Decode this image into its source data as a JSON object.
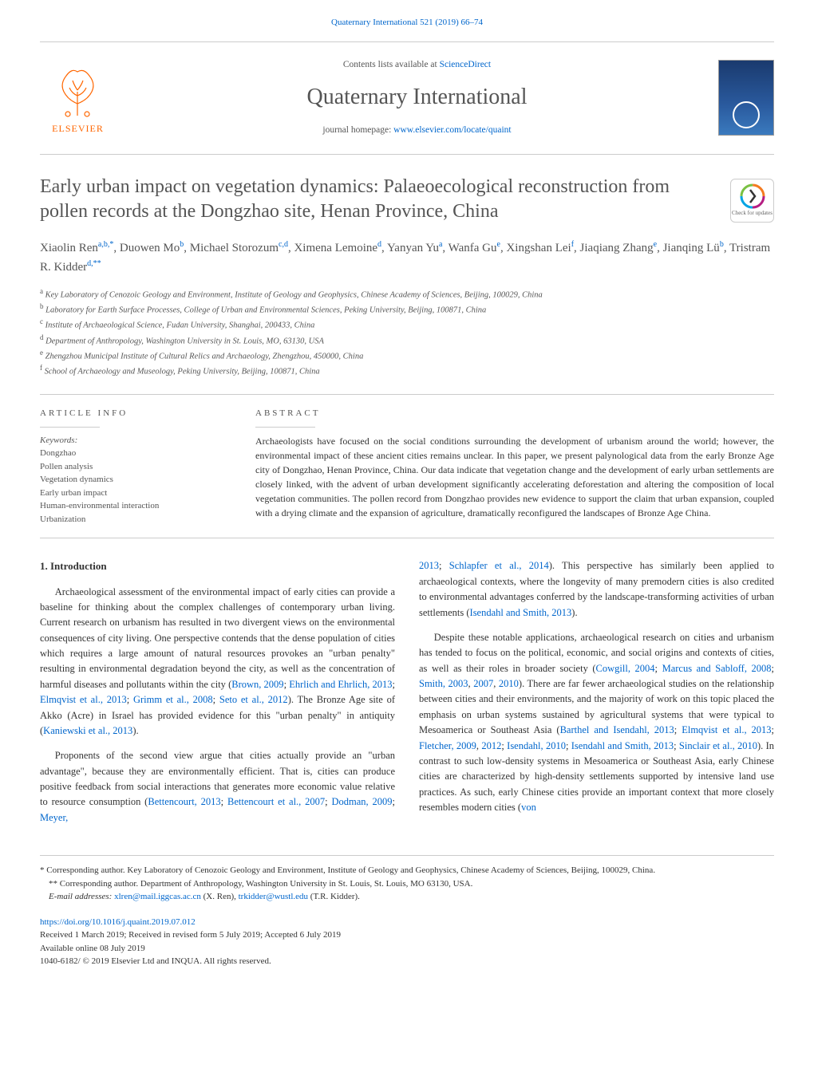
{
  "top_citation": "Quaternary International 521 (2019) 66–74",
  "header": {
    "publisher": "ELSEVIER",
    "contents_prefix": "Contents lists available at ",
    "contents_link": "ScienceDirect",
    "journal_title": "Quaternary International",
    "homepage_prefix": "journal homepage: ",
    "homepage_link": "www.elsevier.com/locate/quaint",
    "logo_color": "#ff6600",
    "cover_gradient_top": "#1a3a6e",
    "cover_gradient_bottom": "#3a7abe"
  },
  "check_updates": {
    "label": "Check for updates",
    "colors": {
      "ring1": "#b51e83",
      "ring2": "#00a4e4",
      "ring3": "#7ac143",
      "ring4": "#f47b20"
    }
  },
  "article": {
    "title": "Early urban impact on vegetation dynamics: Palaeoecological reconstruction from pollen records at the Dongzhao site, Henan Province, China",
    "authors_html": "Xiaolin Ren<sup>a,b,*</sup>, Duowen Mo<sup>b</sup>, Michael Storozum<sup>c,d</sup>, Ximena Lemoine<sup>d</sup>, Yanyan Yu<sup>a</sup>, Wanfa Gu<sup>e</sup>, Xingshan Lei<sup>f</sup>, Jiaqiang Zhang<sup>e</sup>, Jianqing Lü<sup>b</sup>, Tristram R. Kidder<sup>d,**</sup>",
    "affiliations": [
      {
        "key": "a",
        "text": "Key Laboratory of Cenozoic Geology and Environment, Institute of Geology and Geophysics, Chinese Academy of Sciences, Beijing, 100029, China"
      },
      {
        "key": "b",
        "text": "Laboratory for Earth Surface Processes, College of Urban and Environmental Sciences, Peking University, Beijing, 100871, China"
      },
      {
        "key": "c",
        "text": "Institute of Archaeological Science, Fudan University, Shanghai, 200433, China"
      },
      {
        "key": "d",
        "text": "Department of Anthropology, Washington University in St. Louis, MO, 63130, USA"
      },
      {
        "key": "e",
        "text": "Zhengzhou Municipal Institute of Cultural Relics and Archaeology, Zhengzhou, 450000, China"
      },
      {
        "key": "f",
        "text": "School of Archaeology and Museology, Peking University, Beijing, 100871, China"
      }
    ]
  },
  "info": {
    "article_info_label": "ARTICLE INFO",
    "abstract_label": "ABSTRACT",
    "keywords_label": "Keywords:",
    "keywords": "Dongzhao\nPollen analysis\nVegetation dynamics\nEarly urban impact\nHuman-environmental interaction\nUrbanization",
    "abstract_text": "Archaeologists have focused on the social conditions surrounding the development of urbanism around the world; however, the environmental impact of these ancient cities remains unclear. In this paper, we present palynological data from the early Bronze Age city of Dongzhao, Henan Province, China. Our data indicate that vegetation change and the development of early urban settlements are closely linked, with the advent of urban development significantly accelerating deforestation and altering the composition of local vegetation communities. The pollen record from Dongzhao provides new evidence to support the claim that urban expansion, coupled with a drying climate and the expansion of agriculture, dramatically reconfigured the landscapes of Bronze Age China."
  },
  "body": {
    "section_heading": "1. Introduction",
    "left_paragraphs": [
      "Archaeological assessment of the environmental impact of early cities can provide a baseline for thinking about the complex challenges of contemporary urban living. Current research on urbanism has resulted in two divergent views on the environmental consequences of city living. One perspective contends that the dense population of cities which requires a large amount of natural resources provokes an \"urban penalty\" resulting in environmental degradation beyond the city, as well as the concentration of harmful diseases and pollutants within the city (<span class=\"link\">Brown, 2009</span>; <span class=\"link\">Ehrlich and Ehrlich, 2013</span>; <span class=\"link\">Elmqvist et al., 2013</span>; <span class=\"link\">Grimm et al., 2008</span>; <span class=\"link\">Seto et al., 2012</span>). The Bronze Age site of Akko (Acre) in Israel has provided evidence for this \"urban penalty\" in antiquity (<span class=\"link\">Kaniewski et al., 2013</span>).",
      "Proponents of the second view argue that cities actually provide an \"urban advantage\", because they are environmentally efficient. That is, cities can produce positive feedback from social interactions that generates more economic value relative to resource consumption (<span class=\"link\">Bettencourt, 2013</span>; <span class=\"link\">Bettencourt et al., 2007</span>; <span class=\"link\">Dodman, 2009</span>; <span class=\"link\">Meyer,</span>"
    ],
    "right_paragraphs": [
      "<span class=\"link\">2013</span>; <span class=\"link\">Schlapfer et al., 2014</span>). This perspective has similarly been applied to archaeological contexts, where the longevity of many premodern cities is also credited to environmental advantages conferred by the landscape-transforming activities of urban settlements (<span class=\"link\">Isendahl and Smith, 2013</span>).",
      "Despite these notable applications, archaeological research on cities and urbanism has tended to focus on the political, economic, and social origins and contexts of cities, as well as their roles in broader society (<span class=\"link\">Cowgill, 2004</span>; <span class=\"link\">Marcus and Sabloff, 2008</span>; <span class=\"link\">Smith, 2003</span>, <span class=\"link\">2007</span>, <span class=\"link\">2010</span>). There are far fewer archaeological studies on the relationship between cities and their environments, and the majority of work on this topic placed the emphasis on urban systems sustained by agricultural systems that were typical to Mesoamerica or Southeast Asia (<span class=\"link\">Barthel and Isendahl, 2013</span>; <span class=\"link\">Elmqvist et al., 2013</span>; <span class=\"link\">Fletcher, 2009</span>, <span class=\"link\">2012</span>; <span class=\"link\">Isendahl, 2010</span>; <span class=\"link\">Isendahl and Smith, 2013</span>; <span class=\"link\">Sinclair et al., 2010</span>). In contrast to such low-density systems in Mesoamerica or Southeast Asia, early Chinese cities are characterized by high-density settlements supported by intensive land use practices. As such, early Chinese cities provide an important context that more closely resembles modern cities (<span class=\"link\">von</span>"
    ]
  },
  "footnotes": {
    "corr1": "* Corresponding author. Key Laboratory of Cenozoic Geology and Environment, Institute of Geology and Geophysics, Chinese Academy of Sciences, Beijing, 100029, China.",
    "corr2": "** Corresponding author. Department of Anthropology, Washington University in St. Louis, St. Louis, MO 63130, USA.",
    "email_prefix": "E-mail addresses: ",
    "email1": "xlren@mail.iggcas.ac.cn",
    "email1_name": " (X. Ren), ",
    "email2": "trkidder@wustl.edu",
    "email2_name": " (T.R. Kidder)."
  },
  "footer": {
    "doi": "https://doi.org/10.1016/j.quaint.2019.07.012",
    "received": "Received 1 March 2019; Received in revised form 5 July 2019; Accepted 6 July 2019",
    "available": "Available online 08 July 2019",
    "copyright": "1040-6182/ © 2019 Elsevier Ltd and INQUA. All rights reserved."
  },
  "colors": {
    "link": "#0066cc",
    "text": "#333333",
    "heading": "#555555",
    "rule": "#cccccc"
  }
}
